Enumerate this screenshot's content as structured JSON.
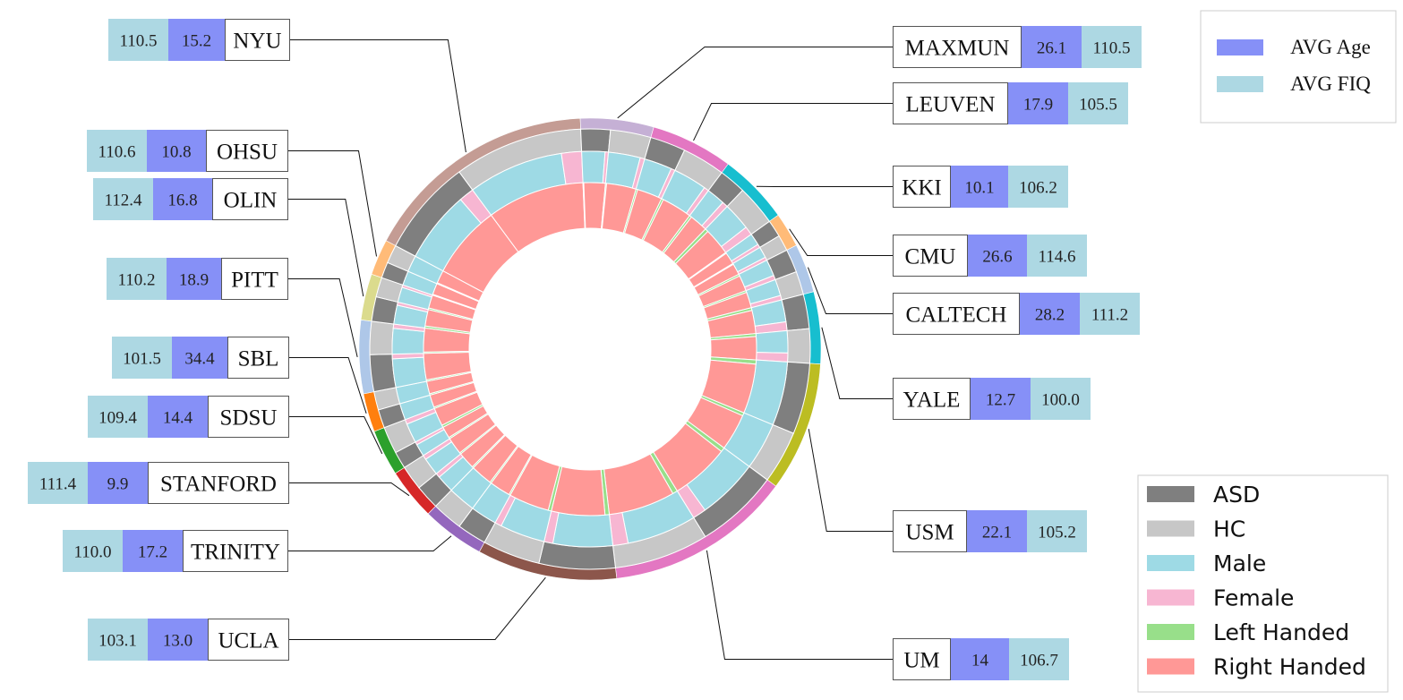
{
  "chart_data": {
    "type": "sunburst",
    "sites": [
      {
        "name": "NYU",
        "color": "#c49c94",
        "avg_age": "15.2",
        "avg_fiq": "110.5",
        "asd": 79,
        "hc": 105,
        "male": 152,
        "female": 32,
        "left_handed": 0,
        "right_handed": 184
      },
      {
        "name": "MAXMUN",
        "color": "#c5b0d5",
        "avg_age": "26.1",
        "avg_fiq": "110.5",
        "asd": 24,
        "hc": 33,
        "male": 50,
        "female": 7,
        "left_handed": 2,
        "right_handed": 55
      },
      {
        "name": "LEUVEN",
        "color": "#e377c2",
        "avg_age": "17.9",
        "avg_fiq": "105.5",
        "asd": 29,
        "hc": 35,
        "male": 56,
        "female": 8,
        "left_handed": 4,
        "right_handed": 60
      },
      {
        "name": "KKI",
        "color": "#17becf",
        "avg_age": "10.1",
        "avg_fiq": "106.2",
        "asd": 22,
        "hc": 33,
        "male": 42,
        "female": 13,
        "left_handed": 6,
        "right_handed": 49
      },
      {
        "name": "CMU",
        "color": "#ffbb78",
        "avg_age": "26.6",
        "avg_fiq": "114.6",
        "asd": 14,
        "hc": 13,
        "male": 21,
        "female": 6,
        "left_handed": 2,
        "right_handed": 25
      },
      {
        "name": "CALTECH",
        "color": "#aec7e8",
        "avg_age": "28.2",
        "avg_fiq": "111.2",
        "asd": 19,
        "hc": 19,
        "male": 30,
        "female": 8,
        "left_handed": 4,
        "right_handed": 34
      },
      {
        "name": "YALE",
        "color": "#17becf",
        "avg_age": "12.7",
        "avg_fiq": "100.0",
        "asd": 28,
        "hc": 28,
        "male": 40,
        "female": 16,
        "left_handed": 6,
        "right_handed": 50
      },
      {
        "name": "USM",
        "color": "#bcbd22",
        "avg_age": "22.1",
        "avg_fiq": "105.2",
        "asd": 58,
        "hc": 43,
        "male": 101,
        "female": 0,
        "left_handed": 8,
        "right_handed": 93
      },
      {
        "name": "UM",
        "color": "#e377c2",
        "avg_age": "14",
        "avg_fiq": "106.7",
        "asd": 68,
        "hc": 77,
        "male": 119,
        "female": 26,
        "left_handed": 10,
        "right_handed": 135
      },
      {
        "name": "UCLA",
        "color": "#8c564b",
        "avg_age": "13.0",
        "avg_fiq": "103.1",
        "asd": 62,
        "hc": 47,
        "male": 95,
        "female": 14,
        "left_handed": 8,
        "right_handed": 101
      },
      {
        "name": "TRINITY",
        "color": "#9467bd",
        "avg_age": "17.2",
        "avg_fiq": "110.0",
        "asd": 24,
        "hc": 25,
        "male": 49,
        "female": 0,
        "left_handed": 3,
        "right_handed": 46
      },
      {
        "name": "STANFORD",
        "color": "#d62728",
        "avg_age": "9.9",
        "avg_fiq": "111.4",
        "asd": 20,
        "hc": 20,
        "male": 32,
        "female": 8,
        "left_handed": 3,
        "right_handed": 37
      },
      {
        "name": "SDSU",
        "color": "#2ca02c",
        "avg_age": "14.4",
        "avg_fiq": "109.4",
        "asd": 14,
        "hc": 22,
        "male": 29,
        "female": 7,
        "left_handed": 4,
        "right_handed": 32
      },
      {
        "name": "SBL",
        "color": "#ff7f0e",
        "avg_age": "34.4",
        "avg_fiq": "101.5",
        "asd": 15,
        "hc": 15,
        "male": 30,
        "female": 0,
        "left_handed": 3,
        "right_handed": 27
      },
      {
        "name": "PITT",
        "color": "#aec7e8",
        "avg_age": "18.9",
        "avg_fiq": "110.2",
        "asd": 30,
        "hc": 27,
        "male": 49,
        "female": 8,
        "left_handed": 3,
        "right_handed": 54
      },
      {
        "name": "OLIN",
        "color": "#dbdb8d",
        "avg_age": "16.8",
        "avg_fiq": "112.4",
        "asd": 20,
        "hc": 16,
        "male": 31,
        "female": 5,
        "left_handed": 4,
        "right_handed": 32
      },
      {
        "name": "OHSU",
        "color": "#ffbb78",
        "avg_age": "10.8",
        "avg_fiq": "110.6",
        "asd": 13,
        "hc": 15,
        "male": 28,
        "female": 0,
        "left_handed": 2,
        "right_handed": 26
      }
    ],
    "stats_legend": [
      {
        "label": "AVG Age",
        "color": "#8690f7"
      },
      {
        "label": "AVG FIQ",
        "color": "#add8e3"
      }
    ],
    "legend": [
      {
        "label": "ASD",
        "color": "#7f7f7f"
      },
      {
        "label": "HC",
        "color": "#c7c7c7"
      },
      {
        "label": "Male",
        "color": "#9edae5"
      },
      {
        "label": "Female",
        "color": "#f7b6d2"
      },
      {
        "label": "Left Handed",
        "color": "#98df8a"
      },
      {
        "label": "Right Handed",
        "color": "#ff9896"
      }
    ]
  }
}
